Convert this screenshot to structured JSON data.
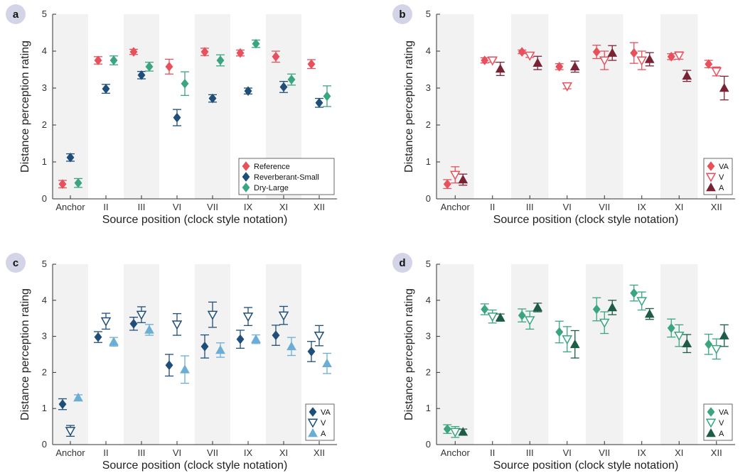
{
  "chart_data": [
    {
      "panel": "a",
      "type": "scatter",
      "categories": [
        "Anchor",
        "II",
        "III",
        "VI",
        "VII",
        "IX",
        "XI",
        "XII"
      ],
      "xlabel": "Source position (clock style notation)",
      "ylabel": "Distance perception rating",
      "ylim": [
        0,
        5
      ],
      "yticks": [
        "0",
        "1",
        "2",
        "3",
        "4",
        "5"
      ],
      "grid": false,
      "legend_position": "bottom-right",
      "series": [
        {
          "name": "Reference",
          "marker": "diamond-filled",
          "color": "#e8505b",
          "values": [
            0.4,
            3.75,
            3.98,
            3.58,
            3.98,
            3.95,
            3.85,
            3.65
          ],
          "errors": [
            0.1,
            0.1,
            0.07,
            0.2,
            0.1,
            0.08,
            0.15,
            0.12
          ]
        },
        {
          "name": "Reverberant-Small",
          "marker": "diamond-filled",
          "color": "#1f4e79",
          "values": [
            1.12,
            2.98,
            3.35,
            2.2,
            2.72,
            2.92,
            3.03,
            2.6
          ],
          "errors": [
            0.1,
            0.12,
            0.1,
            0.22,
            0.1,
            0.08,
            0.15,
            0.12
          ]
        },
        {
          "name": "Dry-Large",
          "marker": "diamond-filled",
          "color": "#3aa57e",
          "values": [
            0.43,
            3.75,
            3.58,
            3.12,
            3.75,
            4.2,
            3.23,
            2.78
          ],
          "errors": [
            0.12,
            0.12,
            0.12,
            0.32,
            0.15,
            0.1,
            0.15,
            0.28
          ]
        }
      ]
    },
    {
      "panel": "b",
      "type": "scatter",
      "categories": [
        "Anchor",
        "II",
        "III",
        "VI",
        "VII",
        "IX",
        "XI",
        "XII"
      ],
      "xlabel": "Source position (clock style notation)",
      "ylabel": "Distance perception rating",
      "ylim": [
        0,
        5
      ],
      "yticks": [
        "0",
        "1",
        "2",
        "3",
        "4",
        "5"
      ],
      "grid": false,
      "legend_position": "bottom-right",
      "series": [
        {
          "name": "VA",
          "marker": "diamond-filled",
          "color": "#e8505b",
          "values": [
            0.4,
            3.75,
            3.98,
            3.58,
            3.98,
            3.95,
            3.85,
            3.65
          ],
          "errors": [
            0.12,
            0.07,
            0.05,
            0.08,
            0.18,
            0.28,
            0.08,
            0.1
          ]
        },
        {
          "name": "V",
          "marker": "triangle-down-open",
          "color": "#e8505b",
          "values": [
            0.65,
            3.75,
            3.88,
            3.05,
            3.75,
            3.75,
            3.88,
            3.45
          ],
          "errors": [
            0.22,
            0.05,
            0.05,
            0.07,
            0.25,
            0.25,
            0.1,
            0.12
          ]
        },
        {
          "name": "A",
          "marker": "triangle-up-filled",
          "color": "#7a2335",
          "values": [
            0.52,
            3.52,
            3.68,
            3.58,
            3.95,
            3.78,
            3.33,
            3.0
          ],
          "errors": [
            0.15,
            0.18,
            0.18,
            0.15,
            0.2,
            0.18,
            0.15,
            0.32
          ]
        }
      ]
    },
    {
      "panel": "c",
      "type": "scatter",
      "categories": [
        "Anchor",
        "II",
        "III",
        "VI",
        "VII",
        "IX",
        "XI",
        "XII"
      ],
      "xlabel": "Source position (clock style notation)",
      "ylabel": "Distance perception rating",
      "ylim": [
        0,
        5
      ],
      "yticks": [
        "0",
        "1",
        "2",
        "3",
        "4",
        "5"
      ],
      "grid": false,
      "legend_position": "bottom-right",
      "series": [
        {
          "name": "VA",
          "marker": "diamond-filled",
          "color": "#1f4e79",
          "values": [
            1.12,
            2.98,
            3.35,
            2.2,
            2.72,
            2.92,
            3.03,
            2.58
          ],
          "errors": [
            0.15,
            0.15,
            0.18,
            0.3,
            0.32,
            0.25,
            0.28,
            0.28
          ]
        },
        {
          "name": "V",
          "marker": "triangle-down-open",
          "color": "#1f4e79",
          "values": [
            0.38,
            3.42,
            3.6,
            3.33,
            3.6,
            3.55,
            3.58,
            3.02
          ],
          "errors": [
            0.15,
            0.22,
            0.22,
            0.3,
            0.35,
            0.25,
            0.25,
            0.28
          ]
        },
        {
          "name": "A",
          "marker": "triangle-up-filled",
          "color": "#6aaed6",
          "values": [
            1.3,
            2.85,
            3.18,
            2.08,
            2.62,
            2.92,
            2.72,
            2.25
          ],
          "errors": [
            0.08,
            0.12,
            0.15,
            0.38,
            0.2,
            0.12,
            0.25,
            0.28
          ]
        }
      ]
    },
    {
      "panel": "d",
      "type": "scatter",
      "categories": [
        "Anchor",
        "II",
        "III",
        "VI",
        "VII",
        "IX",
        "XI",
        "XII"
      ],
      "xlabel": "Source position (clock style notation)",
      "ylabel": "Distance perception rating",
      "ylim": [
        0,
        5
      ],
      "yticks": [
        "0",
        "1",
        "2",
        "3",
        "4",
        "5"
      ],
      "grid": false,
      "legend_position": "bottom-right",
      "series": [
        {
          "name": "VA",
          "marker": "diamond-filled",
          "color": "#3aa57e",
          "values": [
            0.43,
            3.75,
            3.58,
            3.12,
            3.75,
            4.2,
            3.23,
            2.78
          ],
          "errors": [
            0.12,
            0.15,
            0.18,
            0.3,
            0.32,
            0.22,
            0.25,
            0.28
          ]
        },
        {
          "name": "V",
          "marker": "triangle-down-open",
          "color": "#3aa57e",
          "values": [
            0.35,
            3.55,
            3.45,
            2.92,
            3.38,
            3.98,
            3.02,
            2.65
          ],
          "errors": [
            0.15,
            0.18,
            0.25,
            0.35,
            0.3,
            0.25,
            0.3,
            0.28
          ]
        },
        {
          "name": "A",
          "marker": "triangle-up-filled",
          "color": "#1d5c45",
          "values": [
            0.35,
            3.52,
            3.8,
            2.78,
            3.8,
            3.62,
            2.8,
            3.02
          ],
          "errors": [
            0.08,
            0.1,
            0.12,
            0.38,
            0.2,
            0.15,
            0.25,
            0.3
          ]
        }
      ]
    }
  ]
}
